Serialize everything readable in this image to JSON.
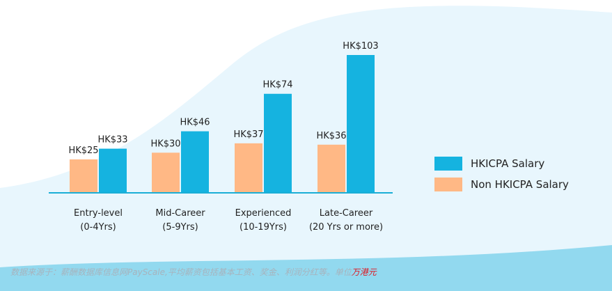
{
  "colors": {
    "hkicpa": "#15b3e0",
    "non_hkicpa": "#ffb885",
    "axis": "#1aaed6",
    "label": "#222222",
    "wave_light": "#e8f6fd",
    "wave_dark": "#92d9ef"
  },
  "chart_data": {
    "type": "bar",
    "categories": [
      {
        "line1": "Entry-level",
        "line2": "(0-4Yrs)"
      },
      {
        "line1": "Mid-Career",
        "line2": "(5-9Yrs)"
      },
      {
        "line1": "Experienced",
        "line2": "(10-19Yrs)"
      },
      {
        "line1": "Late-Career",
        "line2": "(20 Yrs or more)"
      }
    ],
    "series": [
      {
        "name": "Non HKICPA Salary",
        "values": [
          25,
          30,
          37,
          36
        ],
        "labels": [
          "HK$25",
          "HK$30",
          "HK$37",
          "HK$36"
        ]
      },
      {
        "name": "HKICPA Salary",
        "values": [
          33,
          46,
          74,
          103
        ],
        "labels": [
          "HK$33",
          "HK$46",
          "HK$74",
          "HK$103"
        ]
      }
    ],
    "ylim": [
      0,
      103
    ],
    "grid": false,
    "legend_position": "right"
  },
  "legend": {
    "items": [
      {
        "label": "HKICPA Salary"
      },
      {
        "label": "Non HKICPA Salary"
      }
    ]
  },
  "footnote": {
    "text": "数据来源于：薪酬数据库信息网PayScale,平均薪资包括基本工资、奖金、利润分红等。单位",
    "unit": "万港元"
  }
}
